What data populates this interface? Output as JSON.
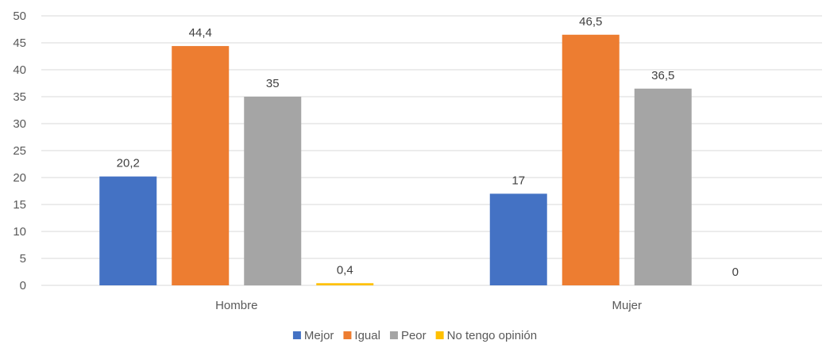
{
  "chart_data": {
    "type": "bar",
    "categories": [
      "Hombre",
      "Mujer"
    ],
    "series": [
      {
        "name": "Mejor",
        "values": [
          20.2,
          17
        ],
        "labels": [
          "20,2",
          "17"
        ]
      },
      {
        "name": "Igual",
        "values": [
          44.4,
          46.5
        ],
        "labels": [
          "44,4",
          "46,5"
        ]
      },
      {
        "name": "Peor",
        "values": [
          35,
          36.5
        ],
        "labels": [
          "35",
          "36,5"
        ]
      },
      {
        "name": "No tengo opinión",
        "values": [
          0.4,
          0
        ],
        "labels": [
          "0,4",
          "0"
        ]
      }
    ],
    "colors": [
      "#4472c4",
      "#ed7d31",
      "#a5a5a5",
      "#ffc000"
    ],
    "ylim": [
      0,
      50
    ],
    "yticks": [
      0,
      5,
      10,
      15,
      20,
      25,
      30,
      35,
      40,
      45,
      50
    ],
    "title": "",
    "xlabel": "",
    "ylabel": "",
    "grid": true,
    "legend": "bottom"
  }
}
